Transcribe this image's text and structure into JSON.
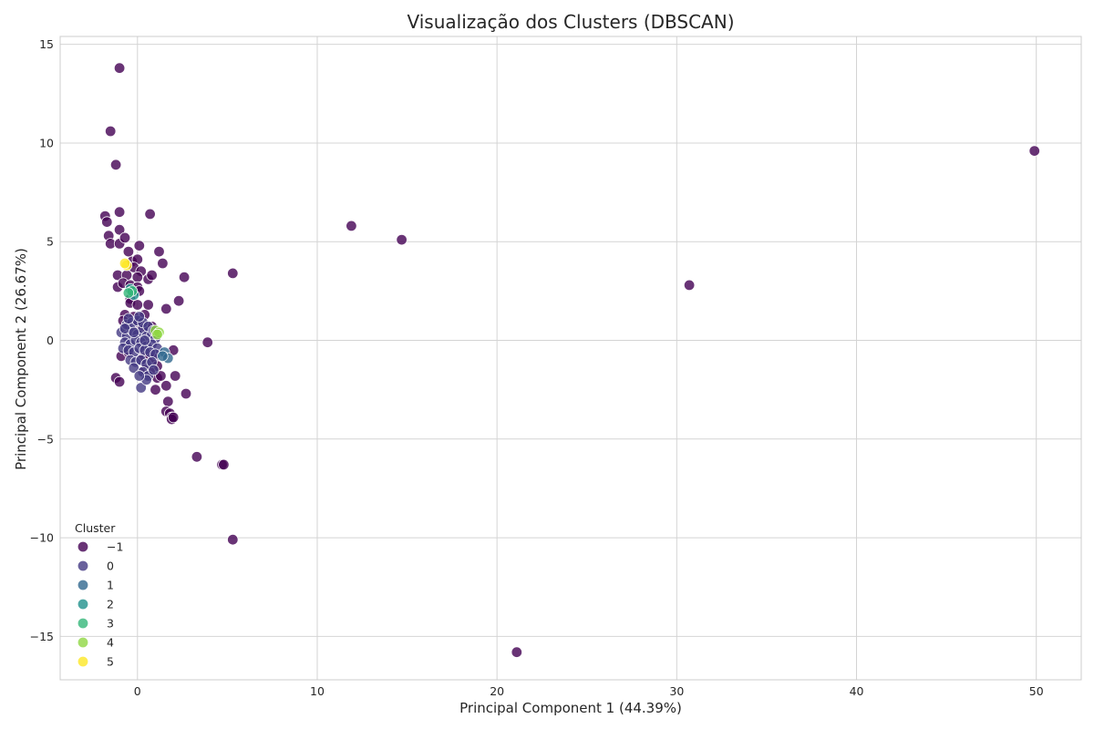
{
  "chart_data": {
    "type": "scatter",
    "title": "Visualização dos Clusters (DBSCAN)",
    "xlabel": "Principal Component 1 (44.39%)",
    "ylabel": "Principal Component 2 (26.67%)",
    "xlim": [
      -4.3,
      52.5
    ],
    "ylim": [
      -17.2,
      15.4
    ],
    "xticks": [
      0,
      10,
      20,
      30,
      40,
      50
    ],
    "xtick_labels": [
      "0",
      "10",
      "20",
      "30",
      "40",
      "50"
    ],
    "yticks": [
      -15,
      -10,
      -5,
      0,
      5,
      10,
      15
    ],
    "ytick_labels": [
      "−15",
      "−10",
      "−5",
      "0",
      "5",
      "10",
      "15"
    ],
    "grid": true,
    "legend": {
      "title": "Cluster",
      "placement": "lower-left",
      "entries": [
        "−1",
        "0",
        "1",
        "2",
        "3",
        "4",
        "5"
      ]
    },
    "colors": {
      "-1": "#440154",
      "0": "#443983",
      "1": "#31688e",
      "2": "#21918c",
      "3": "#35b779",
      "4": "#90d743",
      "5": "#fde725"
    },
    "series": [
      {
        "name": "−1",
        "key": "-1",
        "points": [
          [
            -1.0,
            13.8
          ],
          [
            -1.5,
            10.6
          ],
          [
            -1.2,
            8.9
          ],
          [
            -1.8,
            6.3
          ],
          [
            -1.7,
            6.0
          ],
          [
            -1.0,
            6.5
          ],
          [
            -1.0,
            5.6
          ],
          [
            -1.6,
            5.3
          ],
          [
            -1.5,
            4.9
          ],
          [
            -1.0,
            4.9
          ],
          [
            -0.7,
            5.2
          ],
          [
            0.1,
            4.8
          ],
          [
            0.7,
            6.4
          ],
          [
            1.2,
            4.5
          ],
          [
            1.4,
            3.9
          ],
          [
            -0.5,
            4.5
          ],
          [
            -0.3,
            4.0
          ],
          [
            0.0,
            4.1
          ],
          [
            -0.2,
            3.7
          ],
          [
            0.2,
            3.5
          ],
          [
            -1.1,
            3.3
          ],
          [
            -0.6,
            3.3
          ],
          [
            0.0,
            3.2
          ],
          [
            0.6,
            3.1
          ],
          [
            0.8,
            3.3
          ],
          [
            2.6,
            3.2
          ],
          [
            5.3,
            3.4
          ],
          [
            -1.1,
            2.7
          ],
          [
            -0.8,
            2.9
          ],
          [
            -0.4,
            2.8
          ],
          [
            0.0,
            2.7
          ],
          [
            0.1,
            2.5
          ],
          [
            -0.4,
            2.1
          ],
          [
            -0.4,
            1.9
          ],
          [
            0.0,
            1.8
          ],
          [
            0.6,
            1.8
          ],
          [
            1.6,
            1.6
          ],
          [
            2.3,
            2.0
          ],
          [
            -0.7,
            1.3
          ],
          [
            -0.2,
            1.2
          ],
          [
            0.4,
            1.3
          ],
          [
            -0.8,
            1.0
          ],
          [
            -0.5,
            0.8
          ],
          [
            0.0,
            0.9
          ],
          [
            0.3,
            0.7
          ],
          [
            0.6,
            0.5
          ],
          [
            0.8,
            0.7
          ],
          [
            -0.9,
            -0.8
          ],
          [
            -0.5,
            -0.6
          ],
          [
            0.3,
            -0.9
          ],
          [
            0.6,
            -0.7
          ],
          [
            0.9,
            -0.9
          ],
          [
            1.1,
            -1.3
          ],
          [
            2.0,
            -0.5
          ],
          [
            3.9,
            -0.1
          ],
          [
            0.4,
            -1.5
          ],
          [
            0.7,
            -1.6
          ],
          [
            1.1,
            -1.9
          ],
          [
            1.3,
            -1.8
          ],
          [
            2.1,
            -1.8
          ],
          [
            -1.2,
            -1.9
          ],
          [
            -1.0,
            -2.1
          ],
          [
            1.0,
            -2.5
          ],
          [
            1.6,
            -2.3
          ],
          [
            2.7,
            -2.7
          ],
          [
            1.7,
            -3.1
          ],
          [
            1.6,
            -3.6
          ],
          [
            1.8,
            -3.7
          ],
          [
            1.9,
            -3.9
          ],
          [
            1.9,
            -4.0
          ],
          [
            2.0,
            -3.9
          ],
          [
            3.3,
            -5.9
          ],
          [
            4.7,
            -6.3
          ],
          [
            4.8,
            -6.3
          ],
          [
            5.3,
            -10.1
          ],
          [
            11.9,
            5.8
          ],
          [
            14.7,
            5.1
          ],
          [
            30.7,
            2.8
          ],
          [
            49.9,
            9.6
          ],
          [
            21.1,
            -15.8
          ]
        ]
      },
      {
        "name": "0",
        "key": "0",
        "points": [
          [
            -0.9,
            0.4
          ],
          [
            -0.6,
            0.2
          ],
          [
            -0.3,
            0.5
          ],
          [
            0.0,
            0.3
          ],
          [
            0.3,
            0.6
          ],
          [
            0.5,
            0.2
          ],
          [
            0.8,
            0.3
          ],
          [
            1.0,
            0.1
          ],
          [
            -0.7,
            -0.1
          ],
          [
            -0.4,
            -0.2
          ],
          [
            -0.1,
            0.0
          ],
          [
            0.2,
            -0.1
          ],
          [
            0.5,
            -0.3
          ],
          [
            0.8,
            -0.2
          ],
          [
            1.1,
            -0.4
          ],
          [
            -0.8,
            -0.4
          ],
          [
            -0.5,
            -0.5
          ],
          [
            -0.2,
            -0.6
          ],
          [
            0.1,
            -0.4
          ],
          [
            0.4,
            -0.5
          ],
          [
            0.7,
            -0.6
          ],
          [
            1.0,
            -0.7
          ],
          [
            -0.6,
            0.8
          ],
          [
            -0.3,
            0.9
          ],
          [
            0.0,
            1.0
          ],
          [
            0.3,
            0.9
          ],
          [
            -0.5,
            1.1
          ],
          [
            0.1,
            1.2
          ],
          [
            -0.4,
            -1.0
          ],
          [
            -0.1,
            -1.1
          ],
          [
            0.2,
            -1.0
          ],
          [
            0.5,
            -1.2
          ],
          [
            0.8,
            -1.1
          ],
          [
            -0.2,
            -1.4
          ],
          [
            0.3,
            -1.6
          ],
          [
            0.6,
            -1.8
          ],
          [
            0.9,
            -1.5
          ],
          [
            0.2,
            -2.4
          ],
          [
            0.5,
            -2.0
          ],
          [
            0.1,
            -1.8
          ],
          [
            -0.7,
            0.6
          ],
          [
            0.4,
            0.0
          ],
          [
            0.6,
            0.7
          ],
          [
            -0.2,
            0.4
          ],
          [
            0.9,
            0.5
          ]
        ]
      },
      {
        "name": "1",
        "key": "1",
        "points": [
          [
            1.5,
            -0.6
          ],
          [
            1.7,
            -0.9
          ],
          [
            1.4,
            -0.8
          ]
        ]
      },
      {
        "name": "2",
        "key": "2",
        "points": [
          [
            -0.4,
            2.6
          ],
          [
            -0.2,
            2.3
          ]
        ]
      },
      {
        "name": "3",
        "key": "3",
        "points": [
          [
            -0.3,
            2.5
          ],
          [
            -0.5,
            2.4
          ]
        ]
      },
      {
        "name": "4",
        "key": "4",
        "points": [
          [
            1.0,
            0.5
          ],
          [
            1.2,
            0.4
          ],
          [
            1.1,
            0.3
          ]
        ]
      },
      {
        "name": "5",
        "key": "5",
        "points": [
          [
            -0.6,
            3.8
          ],
          [
            -0.7,
            3.9
          ]
        ]
      }
    ]
  }
}
